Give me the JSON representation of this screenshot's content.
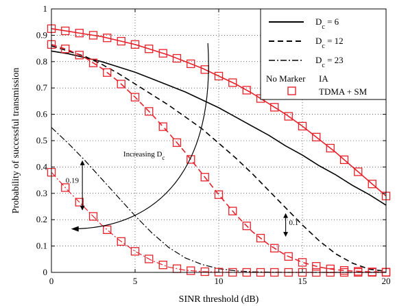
{
  "chart_data": {
    "type": "line",
    "xlabel": "SINR threshold (dB)",
    "ylabel": "Probability of successful transmission",
    "xlim": [
      0,
      20
    ],
    "ylim": [
      0,
      1
    ],
    "x_ticks": [
      "0",
      "5",
      "10",
      "15",
      "20"
    ],
    "y_ticks": [
      "0",
      "0.1",
      "0.2",
      "0.3",
      "0.4",
      "0.5",
      "0.6",
      "0.7",
      "0.8",
      "0.9",
      "1"
    ],
    "legend_position": "top-right",
    "legend": {
      "dc6": {
        "sym": "D",
        "sub": "c",
        "val": " = 6"
      },
      "dc12": {
        "sym": "D",
        "sub": "c",
        "val": " = 12"
      },
      "dc23": {
        "sym": "D",
        "sub": "c",
        "val": " = 23"
      },
      "no_marker": "No Marker",
      "ia": "IA",
      "tdma": "TDMA + SM"
    },
    "annotations": {
      "increasing_prefix": "Increasing D",
      "increasing_sub": "c",
      "gap_left": "0.19",
      "gap_right": "0.1"
    },
    "colors": {
      "ia": "#000000",
      "tdma": "#e8202a"
    },
    "x": [
      0,
      1,
      2,
      3,
      4,
      5,
      6,
      7,
      8,
      9,
      10,
      11,
      12,
      13,
      14,
      15,
      16,
      17,
      18,
      19,
      20
    ],
    "series": [
      {
        "group": "IA",
        "dc": 6,
        "dash": "solid",
        "values": [
          0.84,
          0.83,
          0.815,
          0.8,
          0.78,
          0.76,
          0.735,
          0.71,
          0.685,
          0.655,
          0.625,
          0.59,
          0.555,
          0.52,
          0.48,
          0.445,
          0.405,
          0.37,
          0.33,
          0.295,
          0.255
        ]
      },
      {
        "group": "IA",
        "dc": 12,
        "dash": "dashed",
        "values": [
          0.86,
          0.84,
          0.82,
          0.79,
          0.755,
          0.715,
          0.675,
          0.635,
          0.59,
          0.545,
          0.49,
          0.435,
          0.375,
          0.31,
          0.245,
          0.18,
          0.12,
          0.07,
          0.035,
          0.012,
          0.004
        ]
      },
      {
        "group": "IA",
        "dc": 23,
        "dash": "dashdot",
        "values": [
          0.55,
          0.49,
          0.425,
          0.355,
          0.285,
          0.215,
          0.15,
          0.095,
          0.055,
          0.03,
          0.014,
          0.006,
          0.002,
          0.001,
          0,
          0,
          0,
          0,
          0,
          0,
          0
        ]
      },
      {
        "group": "TDMA + SM",
        "dc": 6,
        "dash": "solid",
        "values": [
          0.925,
          0.915,
          0.905,
          0.895,
          0.88,
          0.865,
          0.845,
          0.825,
          0.8,
          0.775,
          0.745,
          0.715,
          0.68,
          0.64,
          0.6,
          0.555,
          0.505,
          0.455,
          0.4,
          0.345,
          0.29
        ]
      },
      {
        "group": "TDMA + SM",
        "dc": 12,
        "dash": "dashed",
        "values": [
          0.865,
          0.845,
          0.815,
          0.775,
          0.725,
          0.665,
          0.6,
          0.53,
          0.455,
          0.375,
          0.295,
          0.22,
          0.155,
          0.105,
          0.065,
          0.038,
          0.02,
          0.01,
          0.005,
          0.002,
          0.001
        ]
      },
      {
        "group": "TDMA + SM",
        "dc": 23,
        "dash": "dashdot",
        "values": [
          0.38,
          0.31,
          0.245,
          0.18,
          0.125,
          0.08,
          0.045,
          0.02,
          0.008,
          0.003,
          0.001,
          0,
          0,
          0,
          0,
          0,
          0,
          0,
          0,
          0,
          0
        ]
      }
    ],
    "marker_x": [
      0,
      0.83,
      1.67,
      2.5,
      3.33,
      4.17,
      5,
      5.83,
      6.67,
      7.5,
      8.33,
      9.17,
      10,
      10.83,
      11.67,
      12.5,
      13.33,
      14.17,
      15,
      15.83,
      16.67,
      17.5,
      18.33,
      19.17,
      20
    ]
  }
}
